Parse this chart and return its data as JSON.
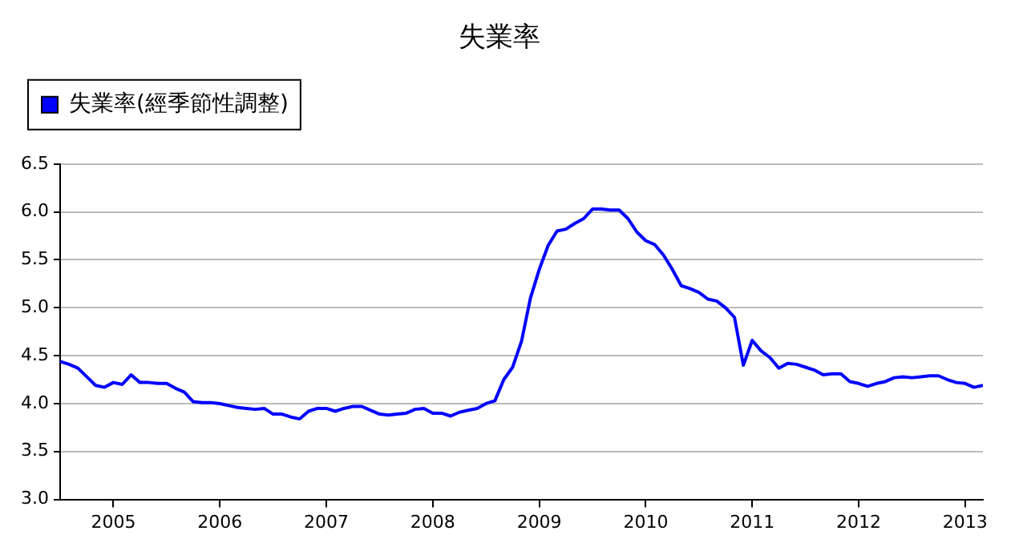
{
  "chart_data": {
    "type": "line",
    "title": "失業率",
    "legend": "top left",
    "grid": "y",
    "x": [
      "2004-07",
      "2004-08",
      "2004-09",
      "2004-10",
      "2004-11",
      "2004-12",
      "2005-01",
      "2005-02",
      "2005-03",
      "2005-04",
      "2005-05",
      "2005-06",
      "2005-07",
      "2005-08",
      "2005-09",
      "2005-10",
      "2005-11",
      "2005-12",
      "2006-01",
      "2006-02",
      "2006-03",
      "2006-04",
      "2006-05",
      "2006-06",
      "2006-07",
      "2006-08",
      "2006-09",
      "2006-10",
      "2006-11",
      "2006-12",
      "2007-01",
      "2007-02",
      "2007-03",
      "2007-04",
      "2007-05",
      "2007-06",
      "2007-07",
      "2007-08",
      "2007-09",
      "2007-10",
      "2007-11",
      "2007-12",
      "2008-01",
      "2008-02",
      "2008-03",
      "2008-04",
      "2008-05",
      "2008-06",
      "2008-07",
      "2008-08",
      "2008-09",
      "2008-10",
      "2008-11",
      "2008-12",
      "2009-01",
      "2009-02",
      "2009-03",
      "2009-04",
      "2009-05",
      "2009-06",
      "2009-07",
      "2009-08",
      "2009-09",
      "2009-10",
      "2009-11",
      "2009-12",
      "2010-01",
      "2010-02",
      "2010-03",
      "2010-04",
      "2010-05",
      "2010-06",
      "2010-07",
      "2010-08",
      "2010-09",
      "2010-10",
      "2010-11",
      "2010-12",
      "2011-01",
      "2011-02",
      "2011-03",
      "2011-04",
      "2011-05",
      "2011-06",
      "2011-07",
      "2011-08",
      "2011-09",
      "2011-10",
      "2011-11",
      "2011-12",
      "2012-01",
      "2012-02",
      "2012-03",
      "2012-04",
      "2012-05",
      "2012-06",
      "2012-07",
      "2012-08",
      "2012-09",
      "2012-10",
      "2012-11",
      "2012-12",
      "2013-01",
      "2013-02",
      "2013-03"
    ],
    "series": [
      {
        "name": "失業率(經季節性調整)",
        "color": "#0000ff",
        "values": [
          4.44,
          4.41,
          4.37,
          4.28,
          4.19,
          4.17,
          4.22,
          4.2,
          4.3,
          4.22,
          4.22,
          4.21,
          4.21,
          4.16,
          4.12,
          4.02,
          4.01,
          4.01,
          4.0,
          3.98,
          3.96,
          3.95,
          3.94,
          3.95,
          3.89,
          3.89,
          3.86,
          3.84,
          3.92,
          3.95,
          3.95,
          3.92,
          3.95,
          3.97,
          3.97,
          3.93,
          3.89,
          3.88,
          3.89,
          3.9,
          3.94,
          3.95,
          3.9,
          3.9,
          3.87,
          3.91,
          3.93,
          3.95,
          4.0,
          4.03,
          4.25,
          4.38,
          4.65,
          5.1,
          5.4,
          5.65,
          5.8,
          5.82,
          5.88,
          5.93,
          6.03,
          6.03,
          6.02,
          6.02,
          5.93,
          5.79,
          5.7,
          5.66,
          5.55,
          5.4,
          5.23,
          5.2,
          5.16,
          5.09,
          5.07,
          5.0,
          4.9,
          4.4,
          4.66,
          4.55,
          4.48,
          4.37,
          4.42,
          4.41,
          4.38,
          4.35,
          4.3,
          4.31,
          4.31,
          4.23,
          4.21,
          4.18,
          4.21,
          4.23,
          4.27,
          4.28,
          4.27,
          4.28,
          4.29,
          4.29,
          4.25,
          4.22,
          4.21,
          4.17,
          4.19
        ]
      }
    ],
    "xlim": [
      "2004-07",
      "2013-03"
    ],
    "xticks": [
      "2005",
      "2006",
      "2007",
      "2008",
      "2009",
      "2010",
      "2011",
      "2012",
      "2013"
    ],
    "ylim": [
      3.0,
      6.5
    ],
    "yticks": [
      {
        "value": 3.0,
        "label": "3.0"
      },
      {
        "value": 3.5,
        "label": "3.5"
      },
      {
        "value": 4.0,
        "label": "4.0"
      },
      {
        "value": 4.5,
        "label": "4.5"
      },
      {
        "value": 5.0,
        "label": "5.0"
      },
      {
        "value": 5.5,
        "label": "5.5"
      },
      {
        "value": 6.0,
        "label": "6.0"
      },
      {
        "value": 6.5,
        "label": "6.5"
      }
    ]
  }
}
